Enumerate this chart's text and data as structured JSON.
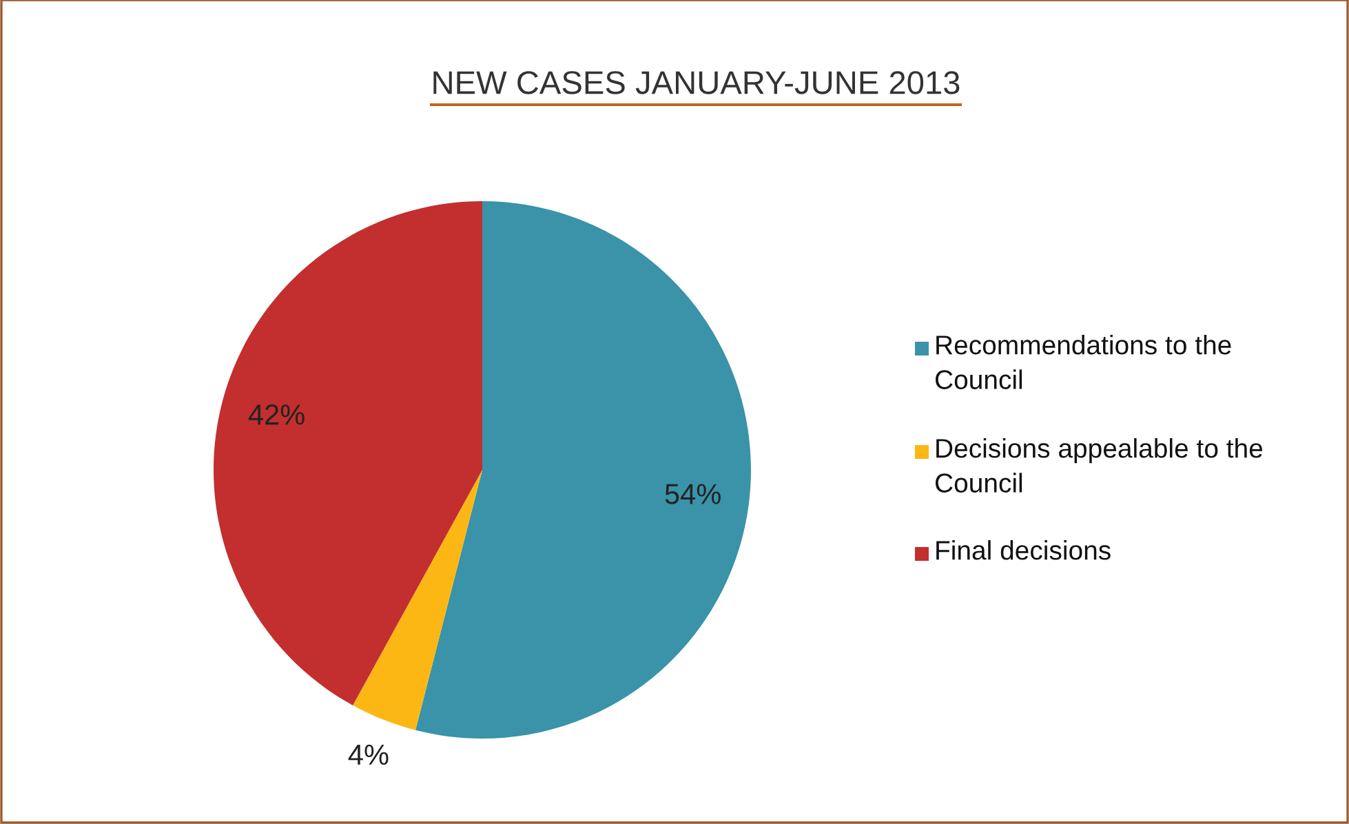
{
  "chart_data": {
    "type": "pie",
    "title": "NEW CASES JANUARY-JUNE 2013",
    "categories": [
      "Recommendations to the Council",
      "Decisions appealable to the Council",
      "Final decisions"
    ],
    "values": [
      54,
      4,
      42
    ],
    "colors": [
      "#3a93a8",
      "#fdb714",
      "#c22f2e"
    ],
    "value_labels": [
      "54%",
      "4%",
      "42%"
    ],
    "legend": "right"
  }
}
